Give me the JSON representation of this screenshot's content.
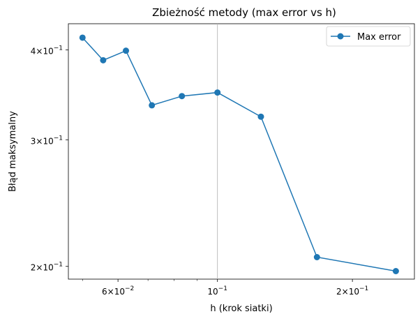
{
  "chart_data": {
    "type": "line",
    "title": "Zbieżność metody (max error vs h)",
    "xlabel": "h (krok siatki)",
    "ylabel": "Błąd maksymalny",
    "xscale": "log",
    "yscale": "log",
    "xlim": [
      0.0465,
      0.275
    ],
    "ylim": [
      0.192,
      0.435
    ],
    "grid": "vertical line at x = 10^-1 only",
    "legend": "top-right",
    "x_ticks": [
      {
        "value": 0.06,
        "mantissa": "6",
        "base": "10",
        "exp": "−2"
      },
      {
        "value": 0.1,
        "mantissa": "",
        "base": "10",
        "exp": "−1"
      },
      {
        "value": 0.2,
        "mantissa": "2",
        "base": "10",
        "exp": "−1"
      }
    ],
    "y_ticks": [
      {
        "value": 0.2,
        "mantissa": "2",
        "base": "10",
        "exp": "−1"
      },
      {
        "value": 0.3,
        "mantissa": "3",
        "base": "10",
        "exp": "−1"
      },
      {
        "value": 0.4,
        "mantissa": "4",
        "base": "10",
        "exp": "−1"
      }
    ],
    "x_minor_ticks": [
      0.05,
      0.07,
      0.08,
      0.09,
      0.3
    ],
    "series": [
      {
        "name": "Max error",
        "color": "#1f77b4",
        "marker": "circle",
        "x": [
          0.05,
          0.0556,
          0.0625,
          0.0714,
          0.0833,
          0.1,
          0.125,
          0.1667,
          0.25
        ],
        "y": [
          0.416,
          0.387,
          0.399,
          0.335,
          0.345,
          0.349,
          0.323,
          0.206,
          0.197
        ]
      }
    ]
  }
}
